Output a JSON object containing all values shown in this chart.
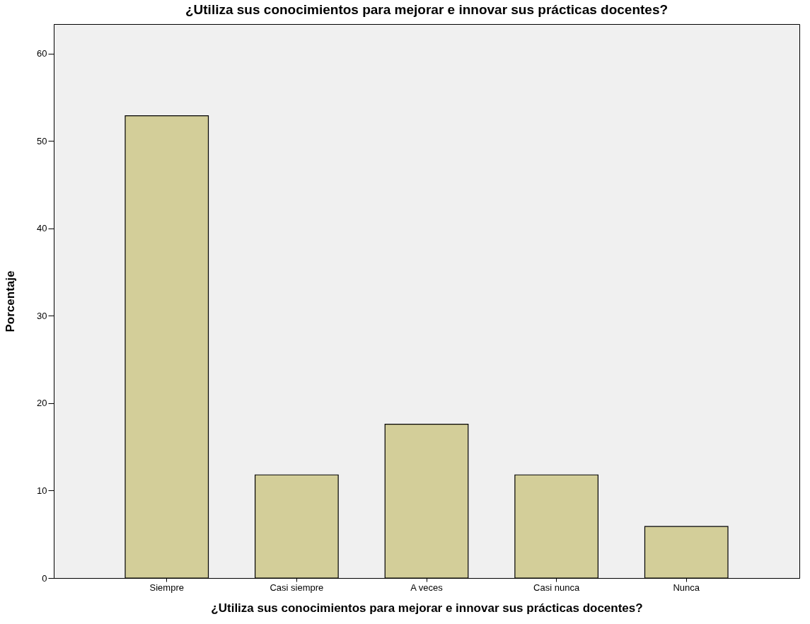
{
  "chart_data": {
    "type": "bar",
    "title": "¿Utiliza sus conocimientos para mejorar e innovar sus prácticas docentes?",
    "xlabel": "¿Utiliza sus conocimientos para mejorar e innovar sus prácticas docentes?",
    "ylabel": "Porcentaje",
    "categories": [
      "Siempre",
      "Casi siempre",
      "A veces",
      "Casi nunca",
      "Nunca"
    ],
    "values": [
      52.9,
      11.8,
      17.6,
      11.8,
      5.9
    ],
    "color": "#d3ce99",
    "ylim": [
      0,
      63.4
    ],
    "yticks": [
      0,
      10,
      20,
      30,
      40,
      50,
      60
    ],
    "grid": false
  }
}
